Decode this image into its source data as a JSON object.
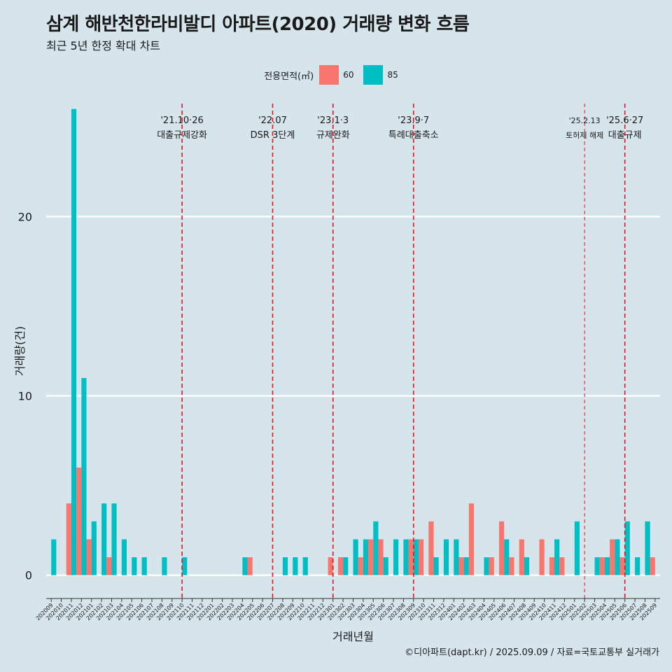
{
  "chart_data": {
    "type": "bar",
    "title": "삼계 해반천한라비발디 아파트(2020) 거래량 변화 흐름",
    "subtitle": "최근 5년 한정 확대 차트",
    "xlabel": "거래년월",
    "ylabel": "거래량(건)",
    "caption": "©디아파트(dapt.kr) / 2025.09.09 / 자료=국토교통부 실거래가",
    "legend_title": "전용면적(㎡)",
    "legend_position": "top",
    "grid": true,
    "ylim": [
      -1.3,
      26.3
    ],
    "y_ticks": [
      0,
      10,
      20
    ],
    "categories": [
      "202009",
      "202010",
      "202011",
      "202012",
      "202101",
      "202102",
      "202103",
      "202104",
      "202105",
      "202106",
      "202107",
      "202108",
      "202109",
      "202110",
      "202111",
      "202112",
      "202201",
      "202202",
      "202203",
      "202204",
      "202205",
      "202206",
      "202207",
      "202208",
      "202209",
      "202210",
      "202211",
      "202212",
      "202301",
      "202302",
      "202303",
      "202304",
      "202305",
      "202306",
      "202307",
      "202308",
      "202309",
      "202310",
      "202311",
      "202312",
      "202401",
      "202402",
      "202403",
      "202404",
      "202405",
      "202406",
      "202407",
      "202408",
      "202409",
      "202410",
      "202411",
      "202412",
      "202501",
      "202502",
      "202503",
      "202504",
      "202505",
      "202506",
      "202507",
      "202508",
      "202509"
    ],
    "series": [
      {
        "name": "60",
        "color": "#f8766d",
        "values": [
          0,
          0,
          4,
          6,
          2,
          0,
          1,
          0,
          0,
          0,
          0,
          0,
          0,
          0,
          0,
          0,
          0,
          0,
          0,
          0,
          1,
          0,
          0,
          0,
          0,
          0,
          0,
          0,
          1,
          1,
          0,
          1,
          2,
          2,
          0,
          0,
          2,
          2,
          3,
          0,
          0,
          1,
          4,
          0,
          1,
          3,
          1,
          2,
          0,
          2,
          1,
          1,
          0,
          0,
          0,
          1,
          2,
          1,
          0,
          0,
          1
        ]
      },
      {
        "name": "85",
        "color": "#00bfc4",
        "values": [
          2,
          0,
          26,
          11,
          3,
          4,
          4,
          2,
          1,
          1,
          0,
          1,
          0,
          1,
          0,
          0,
          0,
          0,
          0,
          1,
          0,
          0,
          0,
          1,
          1,
          1,
          0,
          0,
          0,
          1,
          2,
          2,
          3,
          1,
          2,
          2,
          2,
          0,
          1,
          2,
          2,
          1,
          0,
          1,
          0,
          2,
          0,
          1,
          0,
          0,
          2,
          0,
          3,
          0,
          1,
          1,
          2,
          3,
          1,
          3,
          0
        ]
      }
    ],
    "annotations": [
      {
        "date_label": "'21.10·26",
        "text": "대출규제강화",
        "at": "202110",
        "style": "solid"
      },
      {
        "date_label": "'22.07",
        "text": "DSR 3단계",
        "at": "202207",
        "style": "solid"
      },
      {
        "date_label": "'23.1·3",
        "text": "규제완화",
        "at": "202301",
        "style": "solid"
      },
      {
        "date_label": "'23.9·7",
        "text": "특례대출축소",
        "at": "202309",
        "style": "solid"
      },
      {
        "date_label": "'25.2.13",
        "text": "토허제 해제",
        "at": "202502",
        "style": "thin"
      },
      {
        "date_label": "'25.6·27",
        "text": "대출규제",
        "at": "202506",
        "style": "solid"
      }
    ]
  }
}
